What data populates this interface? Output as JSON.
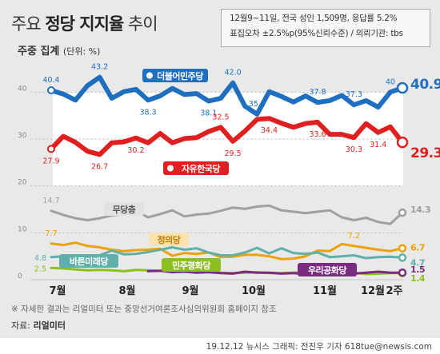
{
  "header": {
    "title_pre": "주요 ",
    "title_bold": "정당 지지율",
    "title_post": " 추이",
    "subtitle_main": "주중 집계",
    "subtitle_unit": "(단위: %)"
  },
  "info": {
    "line1": "12월9~11일, 전국 성인 1,509명, 응답률 5.2%",
    "line2": "표집오차 ±2.5%p(95%신뢰수준) / 의뢰기관: tbs"
  },
  "footer": {
    "footnote": "※ 자세한 결과는 리얼미터 또는 중앙선거여론조사심의위원회 홈페이지 참조",
    "source_label": "자료: ",
    "source_value": "리얼미터",
    "credit": "19.12.12  뉴시스 그래픽: 전진우 기자  618tue@newsis.com"
  },
  "colors": {
    "dem": "#1f6fc0",
    "lkp": "#e02020",
    "none": "#a0a0a0",
    "justice": "#f0a000",
    "bareun": "#5fb0a8",
    "minpyeong": "#8cc020",
    "woori": "#7a2c80"
  },
  "chart_data": {
    "type": "line",
    "x_labels": [
      "7월",
      "8월",
      "9월",
      "10월",
      "11월",
      "12월",
      "2주"
    ],
    "y_ticks": [
      0,
      10,
      20,
      30,
      40
    ],
    "ylim": [
      0,
      45
    ],
    "series": [
      {
        "name": "더불어민주당",
        "key": "dem",
        "values": [
          40.4,
          39.6,
          38.3,
          41.4,
          43.2,
          38.7,
          40.1,
          40.6,
          38.3,
          39.2,
          40.8,
          39.5,
          39.7,
          38.1,
          38.7,
          42.0,
          37.0,
          35.3,
          40.1,
          39.1,
          37.9,
          39.2,
          37.8,
          38.2,
          39.3,
          37.3,
          38.2,
          36.8,
          40.0,
          40.9
        ]
      },
      {
        "name": "자유한국당",
        "key": "lkp",
        "values": [
          27.9,
          30.6,
          29.3,
          27.4,
          26.7,
          29.2,
          29.4,
          30.2,
          29.2,
          31.2,
          29.2,
          30.1,
          30.3,
          31.6,
          32.5,
          29.5,
          31.7,
          34.2,
          34.4,
          33.4,
          32.5,
          33.3,
          33.6,
          31.0,
          31.0,
          30.3,
          33.3,
          31.4,
          32.6,
          29.3
        ]
      },
      {
        "name": "무당층",
        "key": "none",
        "values": [
          14.7,
          13.8,
          13.1,
          12.7,
          13.1,
          13.7,
          14.0,
          14.7,
          13.3,
          14.0,
          14.8,
          13.5,
          13.9,
          14.1,
          14.7,
          15.4,
          15.1,
          15.6,
          15.8,
          14.8,
          14.5,
          14.2,
          14.5,
          14.8,
          13.3,
          12.7,
          13.2,
          12.3,
          11.9,
          14.3
        ]
      },
      {
        "name": "정의당",
        "key": "justice",
        "values": [
          7.7,
          7.4,
          7.9,
          7.2,
          6.9,
          6.4,
          6.1,
          6.3,
          6.4,
          6.6,
          5.1,
          5.7,
          5.5,
          5.8,
          4.8,
          4.9,
          5.3,
          5.3,
          5.0,
          4.4,
          4.5,
          5.0,
          6.2,
          6.1,
          7.6,
          7.2,
          6.8,
          6.4,
          6.1,
          6.7
        ]
      },
      {
        "name": "바른미래당",
        "key": "bareun",
        "values": [
          4.8,
          5.0,
          4.8,
          4.2,
          5.2,
          6.2,
          5.4,
          5.5,
          5.9,
          6.4,
          6.9,
          6.4,
          6.7,
          5.8,
          5.2,
          5.2,
          5.8,
          6.8,
          5.6,
          6.7,
          5.7,
          5.5,
          5.8,
          4.8,
          5.0,
          5.2,
          4.6,
          4.8,
          4.9,
          4.7
        ]
      },
      {
        "name": "민주평화당",
        "key": "minpyeong",
        "values": [
          2.5,
          2.4,
          2.2,
          2.0,
          2.1,
          2.0,
          1.8,
          2.1,
          2.0,
          1.9,
          2.1,
          2.0,
          1.8,
          1.7,
          1.5,
          1.4,
          1.5,
          1.6,
          1.4,
          1.4,
          1.5,
          1.6,
          1.3,
          1.4,
          1.4,
          1.5,
          1.2,
          1.3,
          1.4,
          1.4
        ]
      },
      {
        "name": "우리공화당",
        "key": "woori",
        "values": [
          null,
          null,
          null,
          null,
          null,
          null,
          null,
          null,
          1.8,
          1.9,
          1.6,
          1.7,
          1.5,
          1.6,
          1.4,
          1.3,
          1.7,
          1.5,
          1.5,
          1.3,
          1.4,
          1.2,
          1.7,
          1.4,
          1.5,
          1.3,
          1.5,
          1.7,
          1.5,
          1.5
        ]
      }
    ],
    "value_labels": [
      {
        "key": "dem",
        "i": 0,
        "text": "40.4",
        "pos": "above"
      },
      {
        "key": "dem",
        "i": 4,
        "text": "43.2",
        "pos": "above"
      },
      {
        "key": "dem",
        "i": 8,
        "text": "38.3",
        "pos": "below"
      },
      {
        "key": "dem",
        "i": 13,
        "text": "38.1",
        "pos": "below"
      },
      {
        "key": "dem",
        "i": 15,
        "text": "42.0",
        "pos": "above"
      },
      {
        "key": "dem",
        "i": 17,
        "text": "35.3",
        "pos": "above"
      },
      {
        "key": "dem",
        "i": 22,
        "text": "37.8",
        "pos": "above"
      },
      {
        "key": "dem",
        "i": 25,
        "text": "37.3",
        "pos": "above"
      },
      {
        "key": "dem",
        "i": 28,
        "text": "40",
        "pos": "above"
      },
      {
        "key": "lkp",
        "i": 0,
        "text": "27.9",
        "pos": "below"
      },
      {
        "key": "lkp",
        "i": 4,
        "text": "26.7",
        "pos": "below"
      },
      {
        "key": "lkp",
        "i": 7,
        "text": "30.2",
        "pos": "below"
      },
      {
        "key": "lkp",
        "i": 14,
        "text": "32.5",
        "pos": "above"
      },
      {
        "key": "lkp",
        "i": 15,
        "text": "29.5",
        "pos": "below"
      },
      {
        "key": "lkp",
        "i": 18,
        "text": "34.4",
        "pos": "below"
      },
      {
        "key": "lkp",
        "i": 22,
        "text": "33.6",
        "pos": "below"
      },
      {
        "key": "lkp",
        "i": 25,
        "text": "30.3",
        "pos": "below"
      },
      {
        "key": "lkp",
        "i": 27,
        "text": "31.4",
        "pos": "below"
      },
      {
        "key": "none",
        "i": 0,
        "text": "14.7",
        "pos": "above"
      },
      {
        "key": "justice",
        "i": 0,
        "text": "7.7",
        "pos": "above"
      },
      {
        "key": "justice",
        "i": 25,
        "text": "7.2",
        "pos": "above"
      },
      {
        "key": "bareun",
        "i": 0,
        "text": "4.8",
        "pos": "left"
      },
      {
        "key": "minpyeong",
        "i": 0,
        "text": "2.5",
        "pos": "left"
      }
    ],
    "end_labels": [
      {
        "key": "dem",
        "text": "40.9",
        "big": true
      },
      {
        "key": "lkp",
        "text": "29.3",
        "big": true
      },
      {
        "key": "none",
        "text": "14.3",
        "big": false
      },
      {
        "key": "justice",
        "text": "6.7",
        "big": false
      },
      {
        "key": "bareun",
        "text": "4.7",
        "big": false
      },
      {
        "key": "woori",
        "text": "1.5",
        "big": false
      },
      {
        "key": "minpyeong",
        "text": "1.4",
        "big": false
      }
    ],
    "party_tags": [
      {
        "key": "dem",
        "text": "더불어민주당",
        "style": "filled-icon"
      },
      {
        "key": "lkp",
        "text": "자유한국당",
        "style": "filled-icon"
      },
      {
        "key": "none",
        "text": "무당층",
        "style": "soft"
      },
      {
        "key": "justice",
        "text": "정의당",
        "style": "soft"
      },
      {
        "key": "bareun",
        "text": "바른미래당",
        "style": "filled"
      },
      {
        "key": "minpyeong",
        "text": "민주평화당",
        "style": "filled"
      },
      {
        "key": "woori",
        "text": "우리공화당",
        "style": "filled"
      }
    ]
  }
}
